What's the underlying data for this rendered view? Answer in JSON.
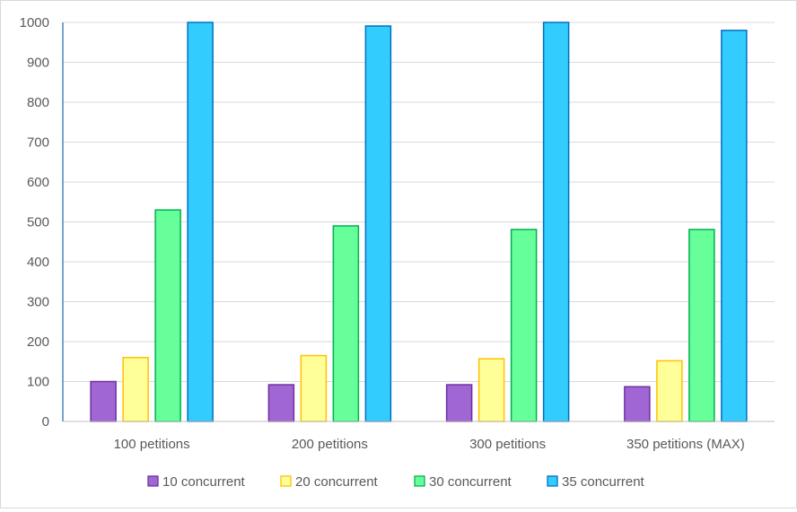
{
  "chart_data": {
    "type": "bar",
    "title": "",
    "xlabel": "",
    "ylabel": "",
    "ylim": [
      0,
      1000
    ],
    "yticks": [
      0,
      100,
      200,
      300,
      400,
      500,
      600,
      700,
      800,
      900,
      1000
    ],
    "grid": true,
    "legend_position": "bottom",
    "categories": [
      "100 petitions",
      "200 petitions",
      "300 petitions",
      "350 petitions (MAX)"
    ],
    "series": [
      {
        "name": "10 concurrent",
        "color": "#a066d3",
        "stroke": "#7030a0",
        "values": [
          100,
          92,
          92,
          87
        ]
      },
      {
        "name": "20 concurrent",
        "color": "#ffff99",
        "stroke": "#ffc000",
        "values": [
          160,
          165,
          157,
          152
        ]
      },
      {
        "name": "30 concurrent",
        "color": "#66ff99",
        "stroke": "#00b050",
        "values": [
          530,
          490,
          481,
          481
        ]
      },
      {
        "name": "35 concurrent",
        "color": "#33ccff",
        "stroke": "#0070c0",
        "values": [
          1000,
          991,
          1000,
          980
        ]
      }
    ]
  }
}
